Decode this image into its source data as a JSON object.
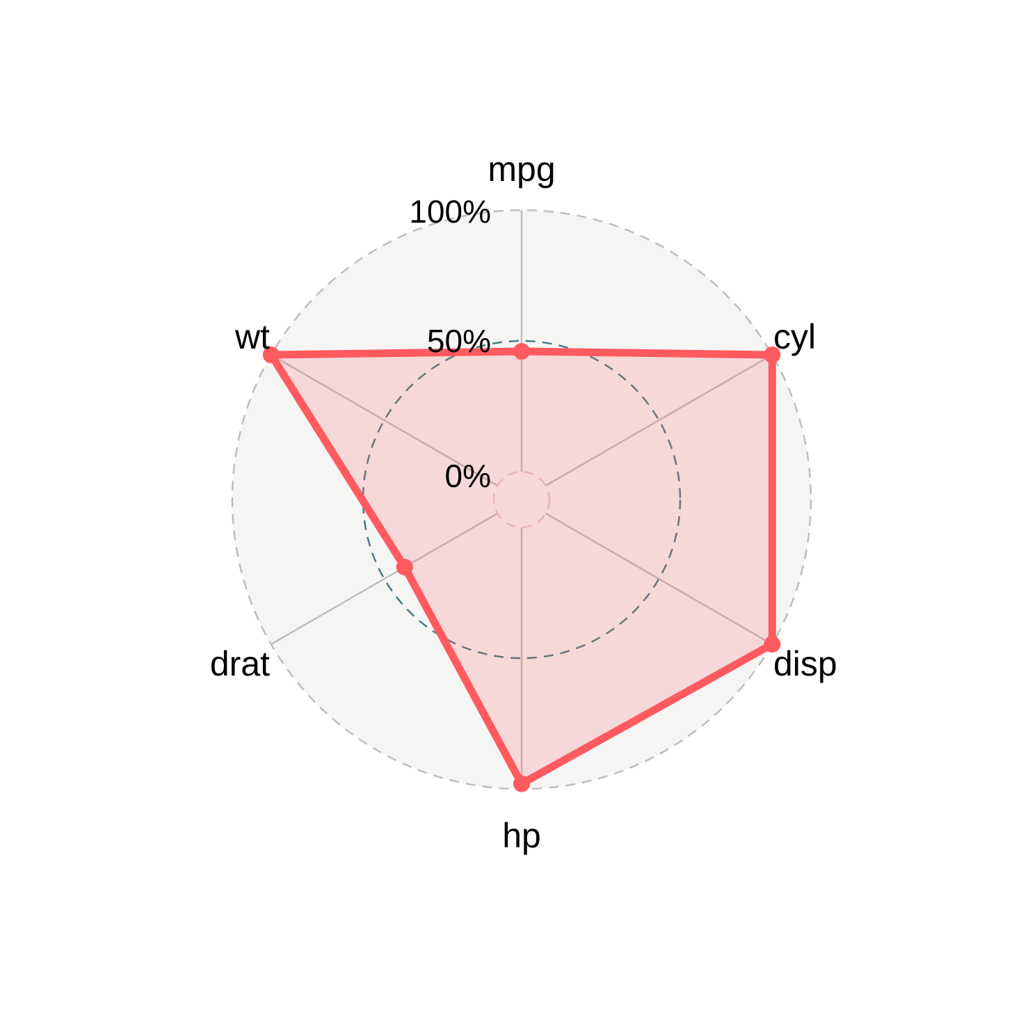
{
  "chart_data": {
    "type": "radar",
    "axes": [
      "mpg",
      "cyl",
      "disp",
      "hp",
      "drat",
      "wt"
    ],
    "series": [
      {
        "values": [
          0.46,
          1.0,
          1.0,
          0.98,
          0.41,
          1.0
        ],
        "color": "#FF5A5F"
      }
    ],
    "grid_levels": [
      0,
      0.5,
      1
    ],
    "grid_labels": [
      "0%",
      "50%",
      "100%"
    ],
    "ylim": [
      0,
      1
    ],
    "colors": {
      "panel_bg": "#F5F5F4",
      "outer_grid": "#BEBEBE",
      "mid_grid": "#4A7A86",
      "inner_grid": "#E4C9C9",
      "axis_line": "#BEBEBE",
      "fill": "#FF5A5F",
      "fill_opacity": 0.18,
      "line": "#FF5A5F"
    }
  }
}
